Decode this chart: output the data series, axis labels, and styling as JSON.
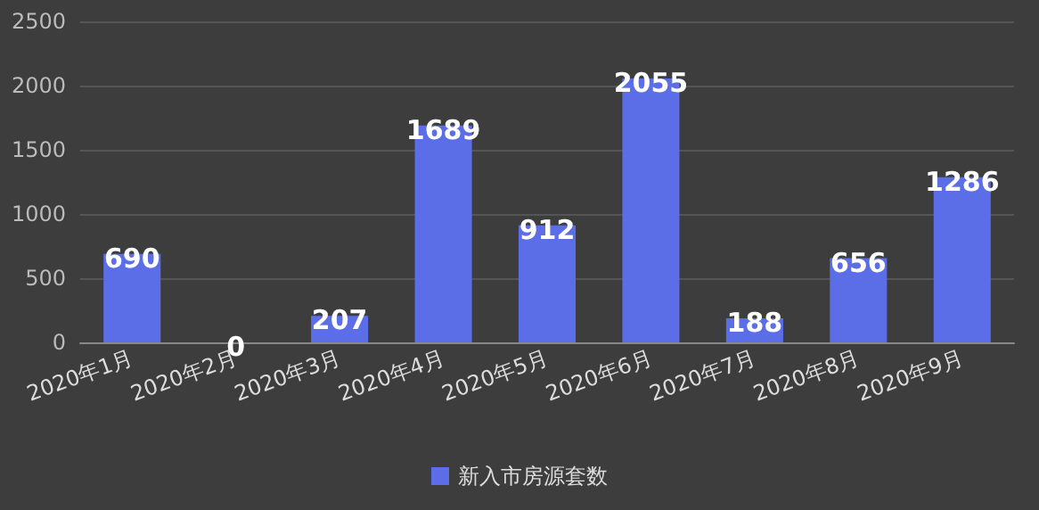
{
  "chart_data": {
    "type": "bar",
    "categories": [
      "2020年1月",
      "2020年2月",
      "2020年3月",
      "2020年4月",
      "2020年5月",
      "2020年6月",
      "2020年7月",
      "2020年8月",
      "2020年9月"
    ],
    "series": [
      {
        "name": "新入市房源套数",
        "color": "#5b6ee8",
        "values": [
          690,
          0,
          207,
          1689,
          912,
          2055,
          188,
          656,
          1286
        ]
      }
    ],
    "ylim": [
      0,
      2500
    ],
    "yticks": [
      0,
      500,
      1000,
      1500,
      2000,
      2500
    ],
    "grid": "y",
    "legend": "bottom",
    "data_labels": true
  }
}
